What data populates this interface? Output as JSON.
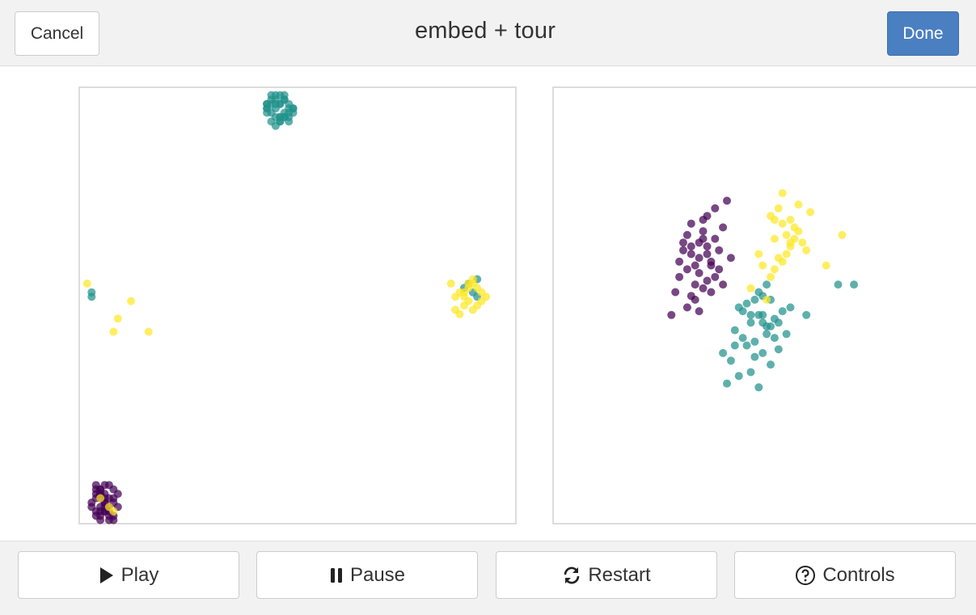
{
  "header": {
    "cancel_label": "Cancel",
    "title": "embed + tour",
    "done_label": "Done"
  },
  "footer": {
    "play_label": "Play",
    "pause_label": "Pause",
    "restart_label": "Restart",
    "controls_label": "Controls"
  },
  "colors": {
    "class_a": "#440154",
    "class_b": "#21918c",
    "class_c": "#fde725",
    "done_button": "#4a7fc1"
  },
  "icons": [
    "play-icon",
    "pause-icon",
    "restart-icon",
    "help-circle-icon"
  ],
  "chart_data": [
    {
      "type": "scatter",
      "name": "embed",
      "series": [
        {
          "class": "a",
          "x": [
            5,
            4,
            6,
            5,
            8,
            4,
            7,
            6,
            5,
            3,
            9,
            7,
            6,
            8,
            4,
            5,
            7,
            6,
            8,
            5,
            4,
            6,
            7,
            5,
            3,
            9,
            8,
            4,
            6,
            7,
            5,
            6,
            8,
            4,
            7,
            5,
            6,
            5
          ],
          "y": [
            4,
            7,
            3,
            8,
            5,
            2,
            6,
            9,
            1,
            4,
            7,
            3,
            5,
            8,
            6,
            2,
            9,
            4,
            1,
            7,
            3,
            6,
            2,
            8,
            5,
            4,
            6,
            9,
            7,
            1,
            3,
            5,
            2,
            8,
            4,
            6,
            3,
            7
          ]
        },
        {
          "class": "b",
          "x": [
            45,
            46,
            43,
            48,
            47,
            44,
            45,
            49,
            46,
            43,
            47,
            44,
            48,
            46,
            45,
            43,
            47,
            49,
            44,
            46,
            48,
            45,
            43,
            47,
            46,
            44,
            48,
            45,
            46,
            47,
            44,
            43,
            49,
            45,
            46,
            47,
            48,
            3,
            3,
            89,
            91,
            90,
            88,
            91
          ],
          "y": [
            96,
            93,
            95,
            94,
            97,
            92,
            98,
            95,
            93,
            96,
            94,
            97,
            92,
            96,
            93,
            95,
            98,
            94,
            96,
            92,
            95,
            97,
            94,
            93,
            96,
            98,
            93,
            95,
            92,
            97,
            94,
            96,
            95,
            91,
            98,
            93,
            96,
            52,
            53,
            55,
            56,
            53,
            54,
            52
          ]
        },
        {
          "class": "c",
          "x": [
            2,
            12,
            9,
            16,
            8,
            85,
            87,
            88,
            90,
            91,
            89,
            92,
            86,
            88,
            90,
            93,
            87,
            89,
            91,
            88,
            92,
            90,
            86,
            89,
            5,
            8,
            7
          ],
          "y": [
            55,
            51,
            47,
            44,
            44,
            55,
            53,
            52,
            56,
            54,
            51,
            53,
            49,
            50,
            55,
            52,
            48,
            54,
            50,
            53,
            51,
            49,
            52,
            55,
            6,
            3,
            4
          ]
        }
      ]
    },
    {
      "type": "scatter",
      "name": "tour",
      "series": [
        {
          "class": "a",
          "x": [
            -1.8,
            -1.5,
            -1.2,
            -1.6,
            -1.1,
            -0.9,
            -1.4,
            -1.3,
            -1.7,
            -1.0,
            -0.8,
            -1.2,
            -1.5,
            -1.6,
            -1.1,
            -0.9,
            -1.3,
            -1.4,
            -2.0,
            -1.9,
            -1.0,
            -0.7,
            -1.2,
            -1.5,
            -1.8,
            -0.6,
            -1.1,
            -1.4,
            -1.3,
            -1.6,
            -0.8,
            -1.0,
            -1.7,
            -1.2,
            -0.5,
            -0.9,
            -1.5,
            -1.3,
            -1.1,
            -0.7
          ],
          "y": [
            0.4,
            0.8,
            1.2,
            0.2,
            0.6,
            1.0,
            -0.2,
            0.5,
            0.9,
            0.3,
            0.7,
            1.5,
            -0.5,
            1.1,
            -0.1,
            1.8,
            0.1,
            -0.6,
            -1.0,
            -0.4,
            0.4,
            1.3,
            -0.3,
            0.6,
            0.0,
            2.0,
            1.6,
            0.3,
            0.9,
            -0.8,
            0.2,
            -0.4,
            0.7,
            1.0,
            0.5,
            0.0,
            1.4,
            -0.9,
            0.8,
            -0.2
          ]
        },
        {
          "class": "b",
          "x": [
            -0.3,
            0.0,
            0.2,
            0.4,
            -0.1,
            0.1,
            0.5,
            0.3,
            -0.5,
            -0.2,
            0.6,
            0.8,
            0.0,
            -0.4,
            0.2,
            0.4,
            1.0,
            0.7,
            -0.6,
            0.1,
            0.3,
            -0.2,
            0.5,
            0.9,
            1.4,
            2.2,
            2.6,
            -0.7,
            0.0,
            0.3,
            0.6,
            -0.3,
            0.2,
            0.4,
            -0.1,
            0.7,
            0.1,
            -0.4,
            0.5,
            0.3
          ],
          "y": [
            -0.8,
            -1.2,
            -1.0,
            -1.5,
            -1.8,
            -0.6,
            -1.3,
            -2.0,
            -2.2,
            -1.6,
            -1.1,
            -0.9,
            -2.5,
            -1.4,
            -0.4,
            -0.2,
            -0.8,
            -1.9,
            -2.8,
            -1.7,
            -1.2,
            -0.9,
            -2.3,
            -1.5,
            -1.0,
            -0.2,
            -0.2,
            -2.0,
            -1.0,
            -0.5,
            -1.6,
            -2.6,
            -2.9,
            -1.3,
            -0.7,
            -1.2,
            -2.1,
            -1.8,
            -0.6,
            -1.0
          ]
        },
        {
          "class": "c",
          "x": [
            0.6,
            0.8,
            1.0,
            1.2,
            0.9,
            0.7,
            1.1,
            0.5,
            1.3,
            0.8,
            1.0,
            0.6,
            1.2,
            0.9,
            1.4,
            0.7,
            0.3,
            0.5,
            1.1,
            0.8,
            1.5,
            1.9,
            2.3,
            0.2,
            0.0,
            1.0,
            0.6,
            0.4
          ],
          "y": [
            1.0,
            1.4,
            0.8,
            1.2,
            0.6,
            1.8,
            1.0,
            1.6,
            0.9,
            0.4,
            1.5,
            0.2,
            1.9,
            1.1,
            0.7,
            0.5,
            0.3,
            0.0,
            1.3,
            2.2,
            1.7,
            0.3,
            1.1,
            0.6,
            -0.3,
            0.9,
            1.5,
            -0.6
          ]
        }
      ]
    }
  ]
}
